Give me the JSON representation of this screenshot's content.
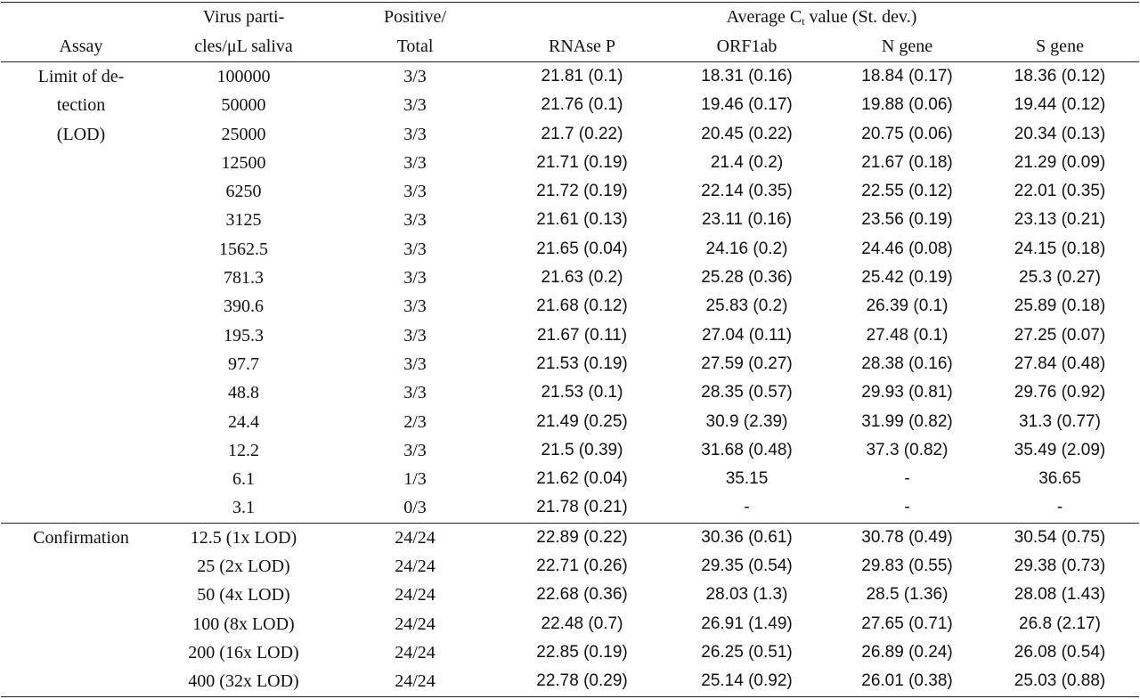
{
  "header": {
    "assay": "Assay",
    "virus": [
      "Virus parti-",
      "cles/μL saliva"
    ],
    "positive": [
      "Positive/",
      "Total"
    ],
    "ct": {
      "prefix": "Average C",
      "sub": "t",
      "suffix": " value (St. dev.)"
    },
    "genes": [
      "RNAse P",
      "ORF1ab",
      "N gene",
      "S gene"
    ]
  },
  "groups": [
    {
      "assay_lines": [
        "Limit of de-",
        "tection",
        "(LOD)"
      ],
      "rows": [
        [
          "100000",
          "3/3",
          "21.81 (0.1)",
          "18.31 (0.16)",
          "18.84 (0.17)",
          "18.36 (0.12)"
        ],
        [
          "50000",
          "3/3",
          "21.76 (0.1)",
          "19.46 (0.17)",
          "19.88 (0.06)",
          "19.44 (0.12)"
        ],
        [
          "25000",
          "3/3",
          "21.7 (0.22)",
          "20.45 (0.22)",
          "20.75 (0.06)",
          "20.34 (0.13)"
        ],
        [
          "12500",
          "3/3",
          "21.71 (0.19)",
          "21.4 (0.2)",
          "21.67 (0.18)",
          "21.29 (0.09)"
        ],
        [
          "6250",
          "3/3",
          "21.72 (0.19)",
          "22.14 (0.35)",
          "22.55 (0.12)",
          "22.01 (0.35)"
        ],
        [
          "3125",
          "3/3",
          "21.61 (0.13)",
          "23.11 (0.16)",
          "23.56 (0.19)",
          "23.13 (0.21)"
        ],
        [
          "1562.5",
          "3/3",
          "21.65 (0.04)",
          "24.16 (0.2)",
          "24.46 (0.08)",
          "24.15 (0.18)"
        ],
        [
          "781.3",
          "3/3",
          "21.63 (0.2)",
          "25.28 (0.36)",
          "25.42 (0.19)",
          "25.3 (0.27)"
        ],
        [
          "390.6",
          "3/3",
          "21.68 (0.12)",
          "25.83 (0.2)",
          "26.39 (0.1)",
          "25.89 (0.18)"
        ],
        [
          "195.3",
          "3/3",
          "21.67 (0.11)",
          "27.04 (0.11)",
          "27.48 (0.1)",
          "27.25 (0.07)"
        ],
        [
          "97.7",
          "3/3",
          "21.53 (0.19)",
          "27.59 (0.27)",
          "28.38 (0.16)",
          "27.84 (0.48)"
        ],
        [
          "48.8",
          "3/3",
          "21.53 (0.1)",
          "28.35 (0.57)",
          "29.93 (0.81)",
          "29.76 (0.92)"
        ],
        [
          "24.4",
          "2/3",
          "21.49 (0.25)",
          "30.9 (2.39)",
          "31.99 (0.82)",
          "31.3 (0.77)"
        ],
        [
          "12.2",
          "3/3",
          "21.5 (0.39)",
          "31.68 (0.48)",
          "37.3 (0.82)",
          "35.49 (2.09)"
        ],
        [
          "6.1",
          "1/3",
          "21.62 (0.04)",
          "35.15",
          "-",
          "36.65"
        ],
        [
          "3.1",
          "0/3",
          "21.78 (0.21)",
          "-",
          "-",
          "-"
        ]
      ]
    },
    {
      "assay_lines": [
        "Confirmation"
      ],
      "rows": [
        [
          "12.5 (1x LOD)",
          "24/24",
          "22.89 (0.22)",
          "30.36 (0.61)",
          "30.78 (0.49)",
          "30.54 (0.75)"
        ],
        [
          "25 (2x LOD)",
          "24/24",
          "22.71 (0.26)",
          "29.35 (0.54)",
          "29.83 (0.55)",
          "29.38 (0.73)"
        ],
        [
          "50 (4x LOD)",
          "24/24",
          "22.68 (0.36)",
          "28.03 (1.3)",
          "28.5 (1.36)",
          "28.08 (1.43)"
        ],
        [
          "100 (8x LOD)",
          "24/24",
          "22.48 (0.7)",
          "26.91 (1.49)",
          "27.65 (0.71)",
          "26.8 (2.17)"
        ],
        [
          "200 (16x LOD)",
          "24/24",
          "22.85 (0.19)",
          "26.25 (0.51)",
          "26.89 (0.24)",
          "26.08 (0.54)"
        ],
        [
          "400 (32x LOD)",
          "24/24",
          "22.78 (0.29)",
          "25.14 (0.92)",
          "26.01 (0.38)",
          "25.03 (0.88)"
        ]
      ]
    }
  ]
}
